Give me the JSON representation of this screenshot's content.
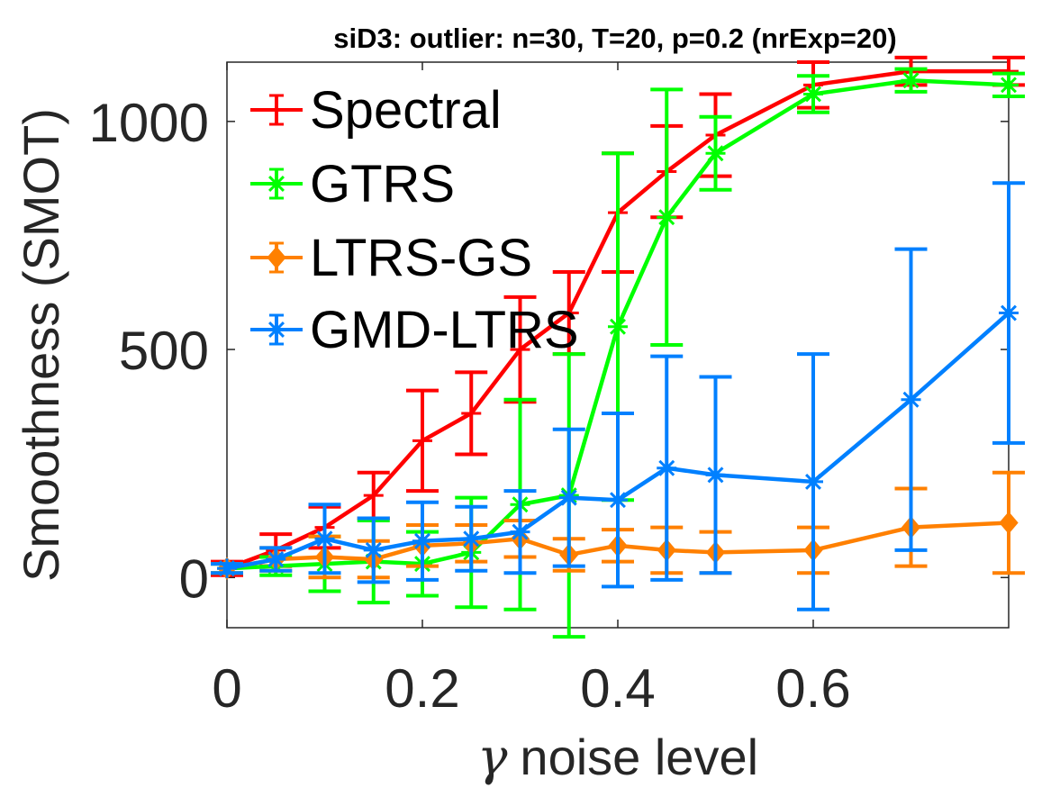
{
  "chart_data": {
    "type": "line",
    "title": "siD3: outlier: n=30, T=20, p=0.2 (nrExp=20)",
    "xlabel_symbol": "γ",
    "xlabel": "noise level",
    "ylabel": "Smoothness (SMOT)",
    "xlim": [
      0,
      0.8
    ],
    "ylim": [
      -110,
      1130
    ],
    "xticks": [
      0,
      0.2,
      0.4,
      0.6
    ],
    "xtick_labels": [
      "0",
      "0.2",
      "0.4",
      "0.6"
    ],
    "yticks": [
      0,
      500,
      1000
    ],
    "ytick_labels": [
      "0",
      "500",
      "1000"
    ],
    "legend_position": "top-left",
    "series": [
      {
        "name": "Spectral",
        "color": "#ff0000",
        "marker": "plus",
        "x": [
          0,
          0.05,
          0.1,
          0.15,
          0.2,
          0.25,
          0.3,
          0.35,
          0.4,
          0.45,
          0.5,
          0.6,
          0.7,
          0.8
        ],
        "y": [
          20,
          60,
          110,
          180,
          300,
          360,
          500,
          580,
          800,
          890,
          970,
          1080,
          1110,
          1110
        ],
        "err": [
          15,
          35,
          45,
          50,
          110,
          90,
          115,
          90,
          130,
          100,
          90,
          50,
          30,
          30
        ]
      },
      {
        "name": "GTRS",
        "color": "#00ff00",
        "marker": "star",
        "x": [
          0,
          0.05,
          0.1,
          0.15,
          0.2,
          0.25,
          0.3,
          0.35,
          0.4,
          0.45,
          0.5,
          0.6,
          0.7,
          0.8
        ],
        "y": [
          20,
          25,
          30,
          35,
          30,
          55,
          160,
          180,
          550,
          790,
          930,
          1060,
          1090,
          1080
        ],
        "err": [
          10,
          20,
          60,
          90,
          70,
          120,
          230,
          310,
          380,
          280,
          80,
          40,
          25,
          25
        ]
      },
      {
        "name": "LTRS-GS",
        "color": "#ff8000",
        "marker": "diamond",
        "x": [
          0,
          0.05,
          0.1,
          0.15,
          0.2,
          0.25,
          0.3,
          0.35,
          0.4,
          0.45,
          0.5,
          0.6,
          0.7,
          0.8
        ],
        "y": [
          20,
          40,
          45,
          40,
          70,
          75,
          85,
          50,
          70,
          60,
          55,
          60,
          110,
          120
        ],
        "err": [
          10,
          25,
          45,
          40,
          45,
          40,
          40,
          35,
          35,
          50,
          45,
          50,
          85,
          110
        ]
      },
      {
        "name": "GMD-LTRS",
        "color": "#0080ff",
        "marker": "star",
        "x": [
          0,
          0.05,
          0.1,
          0.15,
          0.2,
          0.25,
          0.3,
          0.35,
          0.4,
          0.45,
          0.5,
          0.6,
          0.7,
          0.8
        ],
        "y": [
          20,
          40,
          85,
          60,
          80,
          85,
          100,
          175,
          170,
          240,
          225,
          210,
          390,
          580
        ],
        "err": [
          10,
          25,
          75,
          70,
          85,
          70,
          90,
          150,
          190,
          245,
          215,
          280,
          330,
          285
        ]
      }
    ]
  }
}
